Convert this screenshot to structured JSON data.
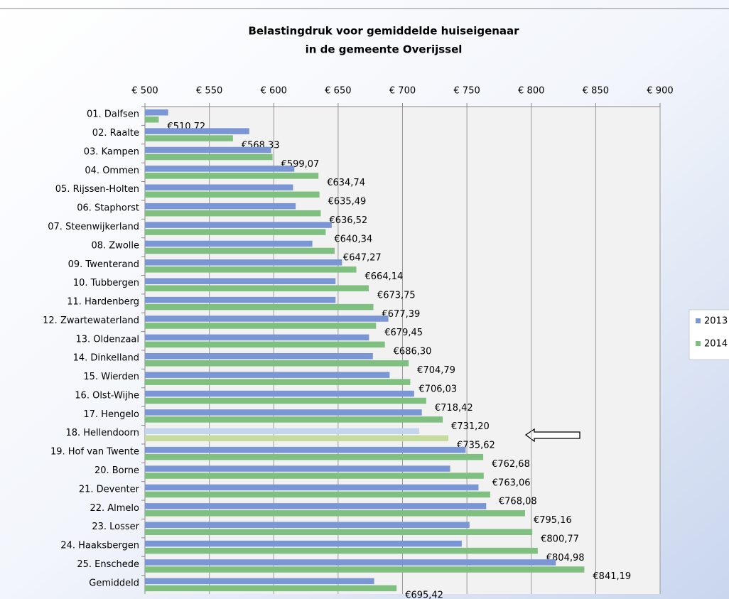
{
  "chart_data": {
    "type": "bar",
    "orientation": "horizontal",
    "title": [
      "Belastingdruk voor gemiddelde huiseigenaar",
      "in de gemeente Overijssel"
    ],
    "categories": [
      "01. Dalfsen",
      "02. Raalte",
      "03. Kampen",
      "04. Ommen",
      "05. Rijssen-Holten",
      "06. Staphorst",
      "07. Steenwijkerland",
      "08. Zwolle",
      "09. Twenterand",
      "10. Tubbergen",
      "11. Hardenberg",
      "12. Zwartewaterland",
      "13. Oldenzaal",
      "14. Dinkelland",
      "15. Wierden",
      "16. Olst-Wijhe",
      "17. Hengelo",
      "18. Hellendoorn",
      "19. Hof van Twente",
      "20. Borne",
      "21. Deventer",
      "22. Almelo",
      "23. Losser",
      "24. Haaksbergen",
      "25. Enschede",
      "Gemiddeld"
    ],
    "series": [
      {
        "name": "2013",
        "color": "#7b96d4",
        "highlight_color": "#c6d5ee",
        "values": [
          518,
          581,
          598,
          616,
          615,
          617,
          645,
          630,
          653,
          648,
          648,
          689,
          674,
          677,
          690,
          709,
          715,
          713,
          749,
          737,
          759,
          765,
          752,
          746,
          819,
          678
        ]
      },
      {
        "name": "2014",
        "color": "#7fbf7f",
        "highlight_color": "#c6dc9e",
        "values": [
          510.72,
          568.33,
          599.07,
          634.74,
          635.49,
          636.52,
          640.34,
          647.27,
          664.14,
          673.75,
          677.39,
          679.45,
          686.3,
          704.79,
          706.03,
          718.42,
          731.2,
          735.62,
          762.68,
          763.06,
          768.08,
          795.16,
          800.77,
          804.98,
          841.19,
          695.42
        ],
        "value_labels": [
          "€510,72",
          "€568,33",
          "€599,07",
          "€634,74",
          "€635,49",
          "€636,52",
          "€640,34",
          "€647,27",
          "€664,14",
          "€673,75",
          "€677,39",
          "€679,45",
          "€686,30",
          "€704,79",
          "€706,03",
          "€718,42",
          "€731,20",
          "€735,62",
          "€762,68",
          "€763,06",
          "€768,08",
          "€795,16",
          "€800,77",
          "€804,98",
          "€841,19",
          "€695,42"
        ]
      }
    ],
    "highlight_index": 17,
    "xlim": [
      500,
      900
    ],
    "xticks": [
      {
        "value": 500,
        "label": "€ 500"
      },
      {
        "value": 550,
        "label": "€ 550"
      },
      {
        "value": 600,
        "label": "€ 600"
      },
      {
        "value": 650,
        "label": "€ 650"
      },
      {
        "value": 700,
        "label": "€ 700"
      },
      {
        "value": 750,
        "label": "€ 750"
      },
      {
        "value": 800,
        "label": "€ 800"
      },
      {
        "value": 850,
        "label": "€ 850"
      },
      {
        "value": 900,
        "label": "€ 900"
      }
    ],
    "grid": true,
    "legend": "right"
  }
}
